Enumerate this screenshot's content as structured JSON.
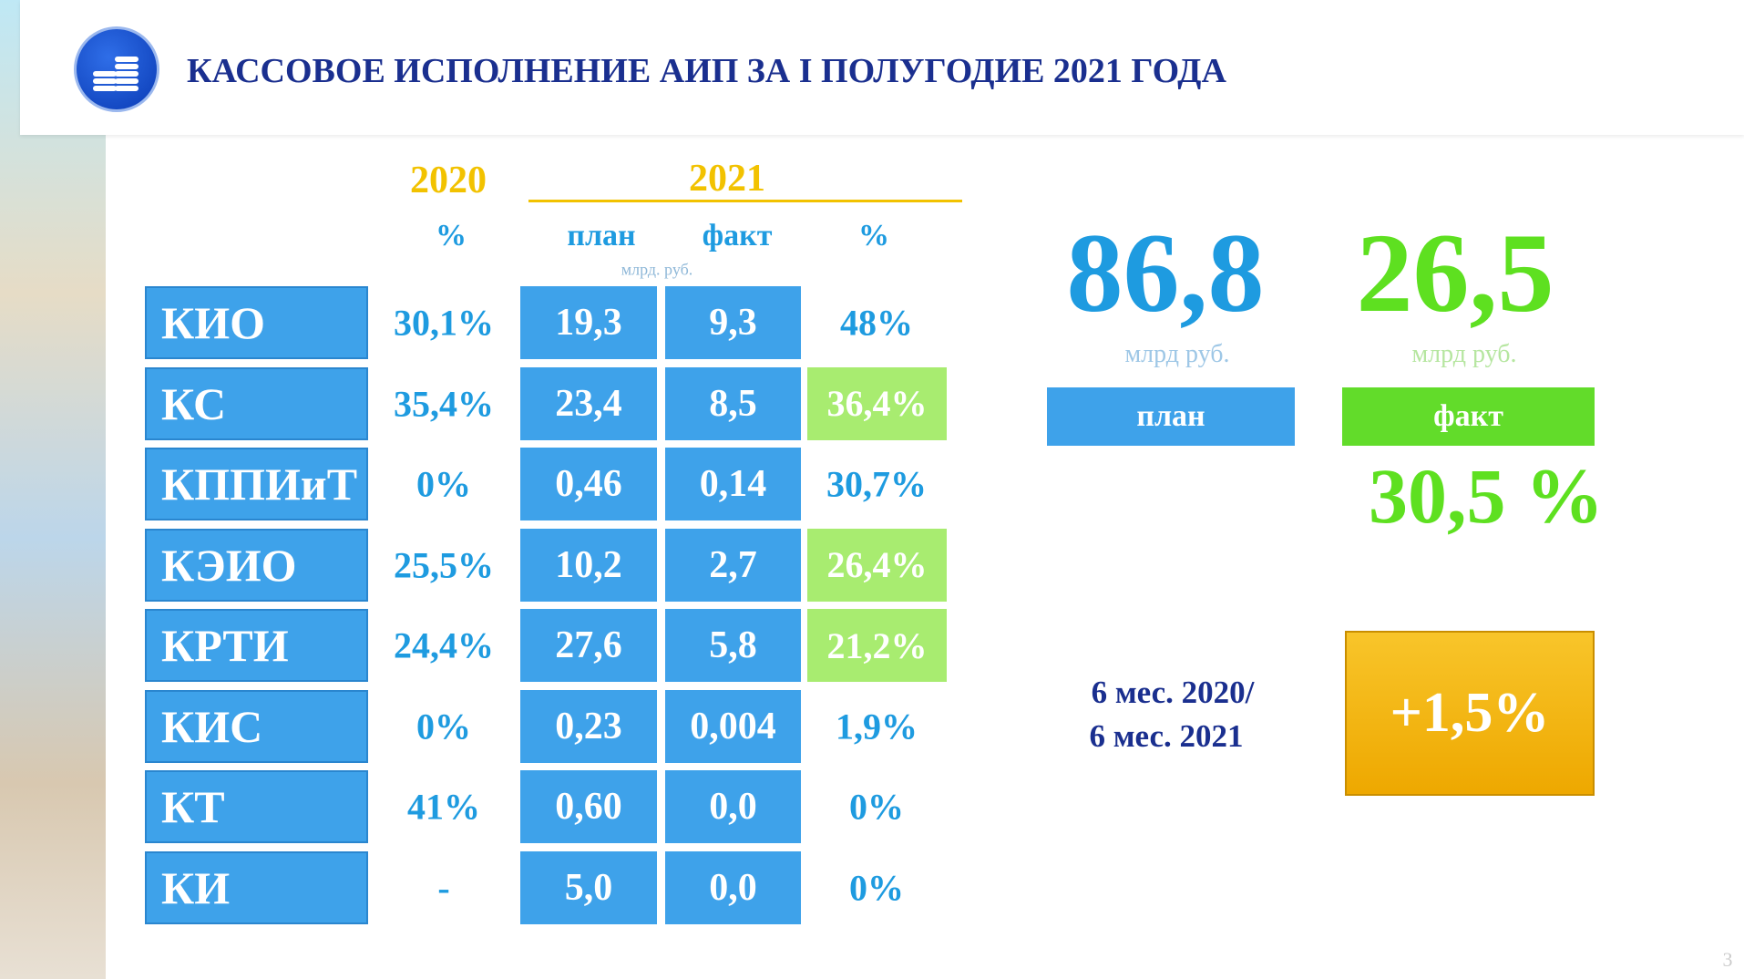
{
  "header": {
    "title": "КАССОВОЕ ИСПОЛНЕНИЕ АИП ЗА I ПОЛУГОДИЕ 2021 ГОДА"
  },
  "table": {
    "year_2020": "2020",
    "year_2021": "2021",
    "col_pct_2020": "%",
    "col_plan": "план",
    "col_fact": "факт",
    "col_pct_2021": "%",
    "unit": "млрд. руб.",
    "rows": [
      [
        "КИО",
        "30,1%",
        "19,3",
        "9,3",
        "48%"
      ],
      [
        "КС",
        "35,4%",
        "23,4",
        "8,5",
        "36,4%"
      ],
      [
        "КППИиТ",
        "0%",
        "0,46",
        "0,14",
        "30,7%"
      ],
      [
        "КЭИО",
        "25,5%",
        "10,2",
        "2,7",
        "26,4%"
      ],
      [
        "КРТИ",
        "24,4%",
        "27,6",
        "5,8",
        "21,2%"
      ],
      [
        "КИС",
        "0%",
        "0,23",
        "0,004",
        "1,9%"
      ],
      [
        "КТ",
        "41%",
        "0,60",
        "0,0",
        "0%"
      ],
      [
        "КИ",
        "-",
        "5,0",
        "0,0",
        "0%"
      ]
    ]
  },
  "summary": {
    "plan_value": "86,8",
    "plan_unit": "млрд руб.",
    "plan_label": "план",
    "fact_value": "26,5",
    "fact_unit": "млрд руб.",
    "fact_label": "факт",
    "fact_pct": "30,5 %",
    "comparison_line1": "6 мес. 2020/",
    "comparison_line2": "6 мес. 2021",
    "comparison_value": "+1,5%"
  },
  "page_number": "3"
}
